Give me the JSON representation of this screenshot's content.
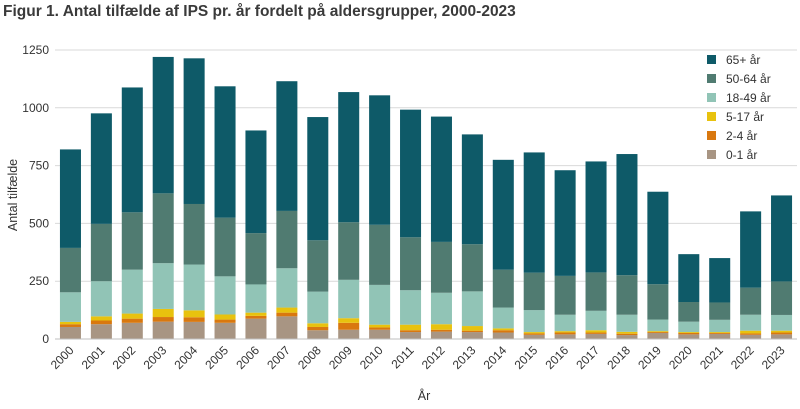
{
  "figure_title": "Figur 1. Antal tilfælde af IPS pr. år fordelt på aldersgrupper, 2000-2023",
  "chart_data": {
    "type": "bar",
    "stacked": true,
    "xlabel": "År",
    "ylabel": "Antal tilfælde",
    "ylim": [
      0,
      1250
    ],
    "yticks": [
      0,
      250,
      500,
      750,
      1000,
      1250
    ],
    "legend_position": "top-right",
    "categories": [
      "2000",
      "2001",
      "2002",
      "2003",
      "2004",
      "2005",
      "2006",
      "2007",
      "2008",
      "2009",
      "2010",
      "2011",
      "2012",
      "2013",
      "2014",
      "2015",
      "2016",
      "2017",
      "2018",
      "2019",
      "2020",
      "2021",
      "2022",
      "2023"
    ],
    "series": [
      {
        "name": "0-1 år",
        "color": "#a89583",
        "values": [
          52,
          64,
          70,
          75,
          74,
          70,
          88,
          98,
          38,
          40,
          40,
          30,
          32,
          30,
          28,
          18,
          20,
          22,
          17,
          26,
          20,
          22,
          18,
          20
        ]
      },
      {
        "name": "2-4 år",
        "color": "#d9780f",
        "values": [
          12,
          16,
          18,
          20,
          20,
          14,
          12,
          16,
          14,
          30,
          10,
          8,
          8,
          6,
          10,
          6,
          8,
          6,
          6,
          4,
          6,
          4,
          6,
          8
        ]
      },
      {
        "name": "5-17 år",
        "color": "#e8c20e",
        "values": [
          10,
          18,
          22,
          35,
          30,
          22,
          14,
          22,
          16,
          20,
          12,
          24,
          24,
          20,
          8,
          6,
          6,
          10,
          8,
          4,
          4,
          4,
          12,
          8
        ]
      },
      {
        "name": "18-49 år",
        "color": "#91c4b6",
        "values": [
          128,
          152,
          190,
          198,
          198,
          165,
          122,
          170,
          137,
          166,
          172,
          149,
          136,
          150,
          90,
          95,
          71,
          84,
          74,
          50,
          45,
          53,
          69,
          68
        ]
      },
      {
        "name": "50-64 år",
        "color": "#507b71",
        "values": [
          192,
          248,
          248,
          302,
          262,
          254,
          222,
          248,
          222,
          249,
          260,
          229,
          220,
          204,
          164,
          162,
          168,
          166,
          171,
          153,
          85,
          75,
          117,
          145
        ]
      },
      {
        "name": "65+ år",
        "color": "#0e5a68",
        "values": [
          426,
          478,
          540,
          590,
          630,
          568,
          444,
          561,
          533,
          563,
          560,
          552,
          542,
          475,
          475,
          520,
          457,
          480,
          524,
          400,
          207,
          192,
          330,
          372
        ]
      }
    ]
  }
}
